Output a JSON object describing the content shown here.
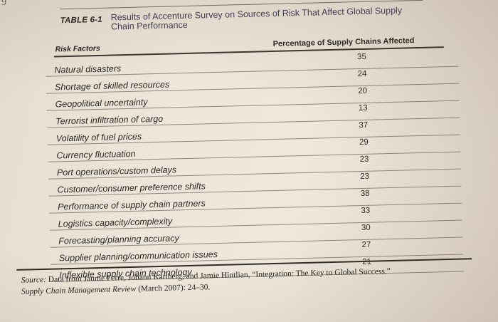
{
  "page_number": "9",
  "table": {
    "label": "TABLE 6-1",
    "title": "Results of Accenture Survey on Sources of Risk That Affect Global Supply Chain Performance",
    "columns": {
      "factor": "Risk Factors",
      "percentage": "Percentage of Supply Chains Affected"
    },
    "rows": [
      {
        "factor": "Natural disasters",
        "percentage": "35"
      },
      {
        "factor": "Shortage of skilled resources",
        "percentage": "24"
      },
      {
        "factor": "Geopolitical uncertainty",
        "percentage": "20"
      },
      {
        "factor": "Terrorist infiltration of cargo",
        "percentage": "13"
      },
      {
        "factor": "Volatility of fuel prices",
        "percentage": "37"
      },
      {
        "factor": "Currency fluctuation",
        "percentage": "29"
      },
      {
        "factor": "Port operations/custom delays",
        "percentage": "23"
      },
      {
        "factor": "Customer/consumer preference shifts",
        "percentage": "23"
      },
      {
        "factor": "Performance of supply chain partners",
        "percentage": "38"
      },
      {
        "factor": "Logistics capacity/complexity",
        "percentage": "33"
      },
      {
        "factor": "Forecasting/planning accuracy",
        "percentage": "30"
      },
      {
        "factor": "Supplier planning/communication issues",
        "percentage": "27"
      },
      {
        "factor": "Inflexible supply chain technology",
        "percentage": "21"
      }
    ]
  },
  "source": {
    "label": "Source:",
    "authors": "Data from Jaume Ferre, Johann Karlberg, and Jamie Hintlian, “Integration: The Key to Global Success.”",
    "journal": "Supply Chain Management Review",
    "citation_tail": "(March 2007): 24–30."
  }
}
